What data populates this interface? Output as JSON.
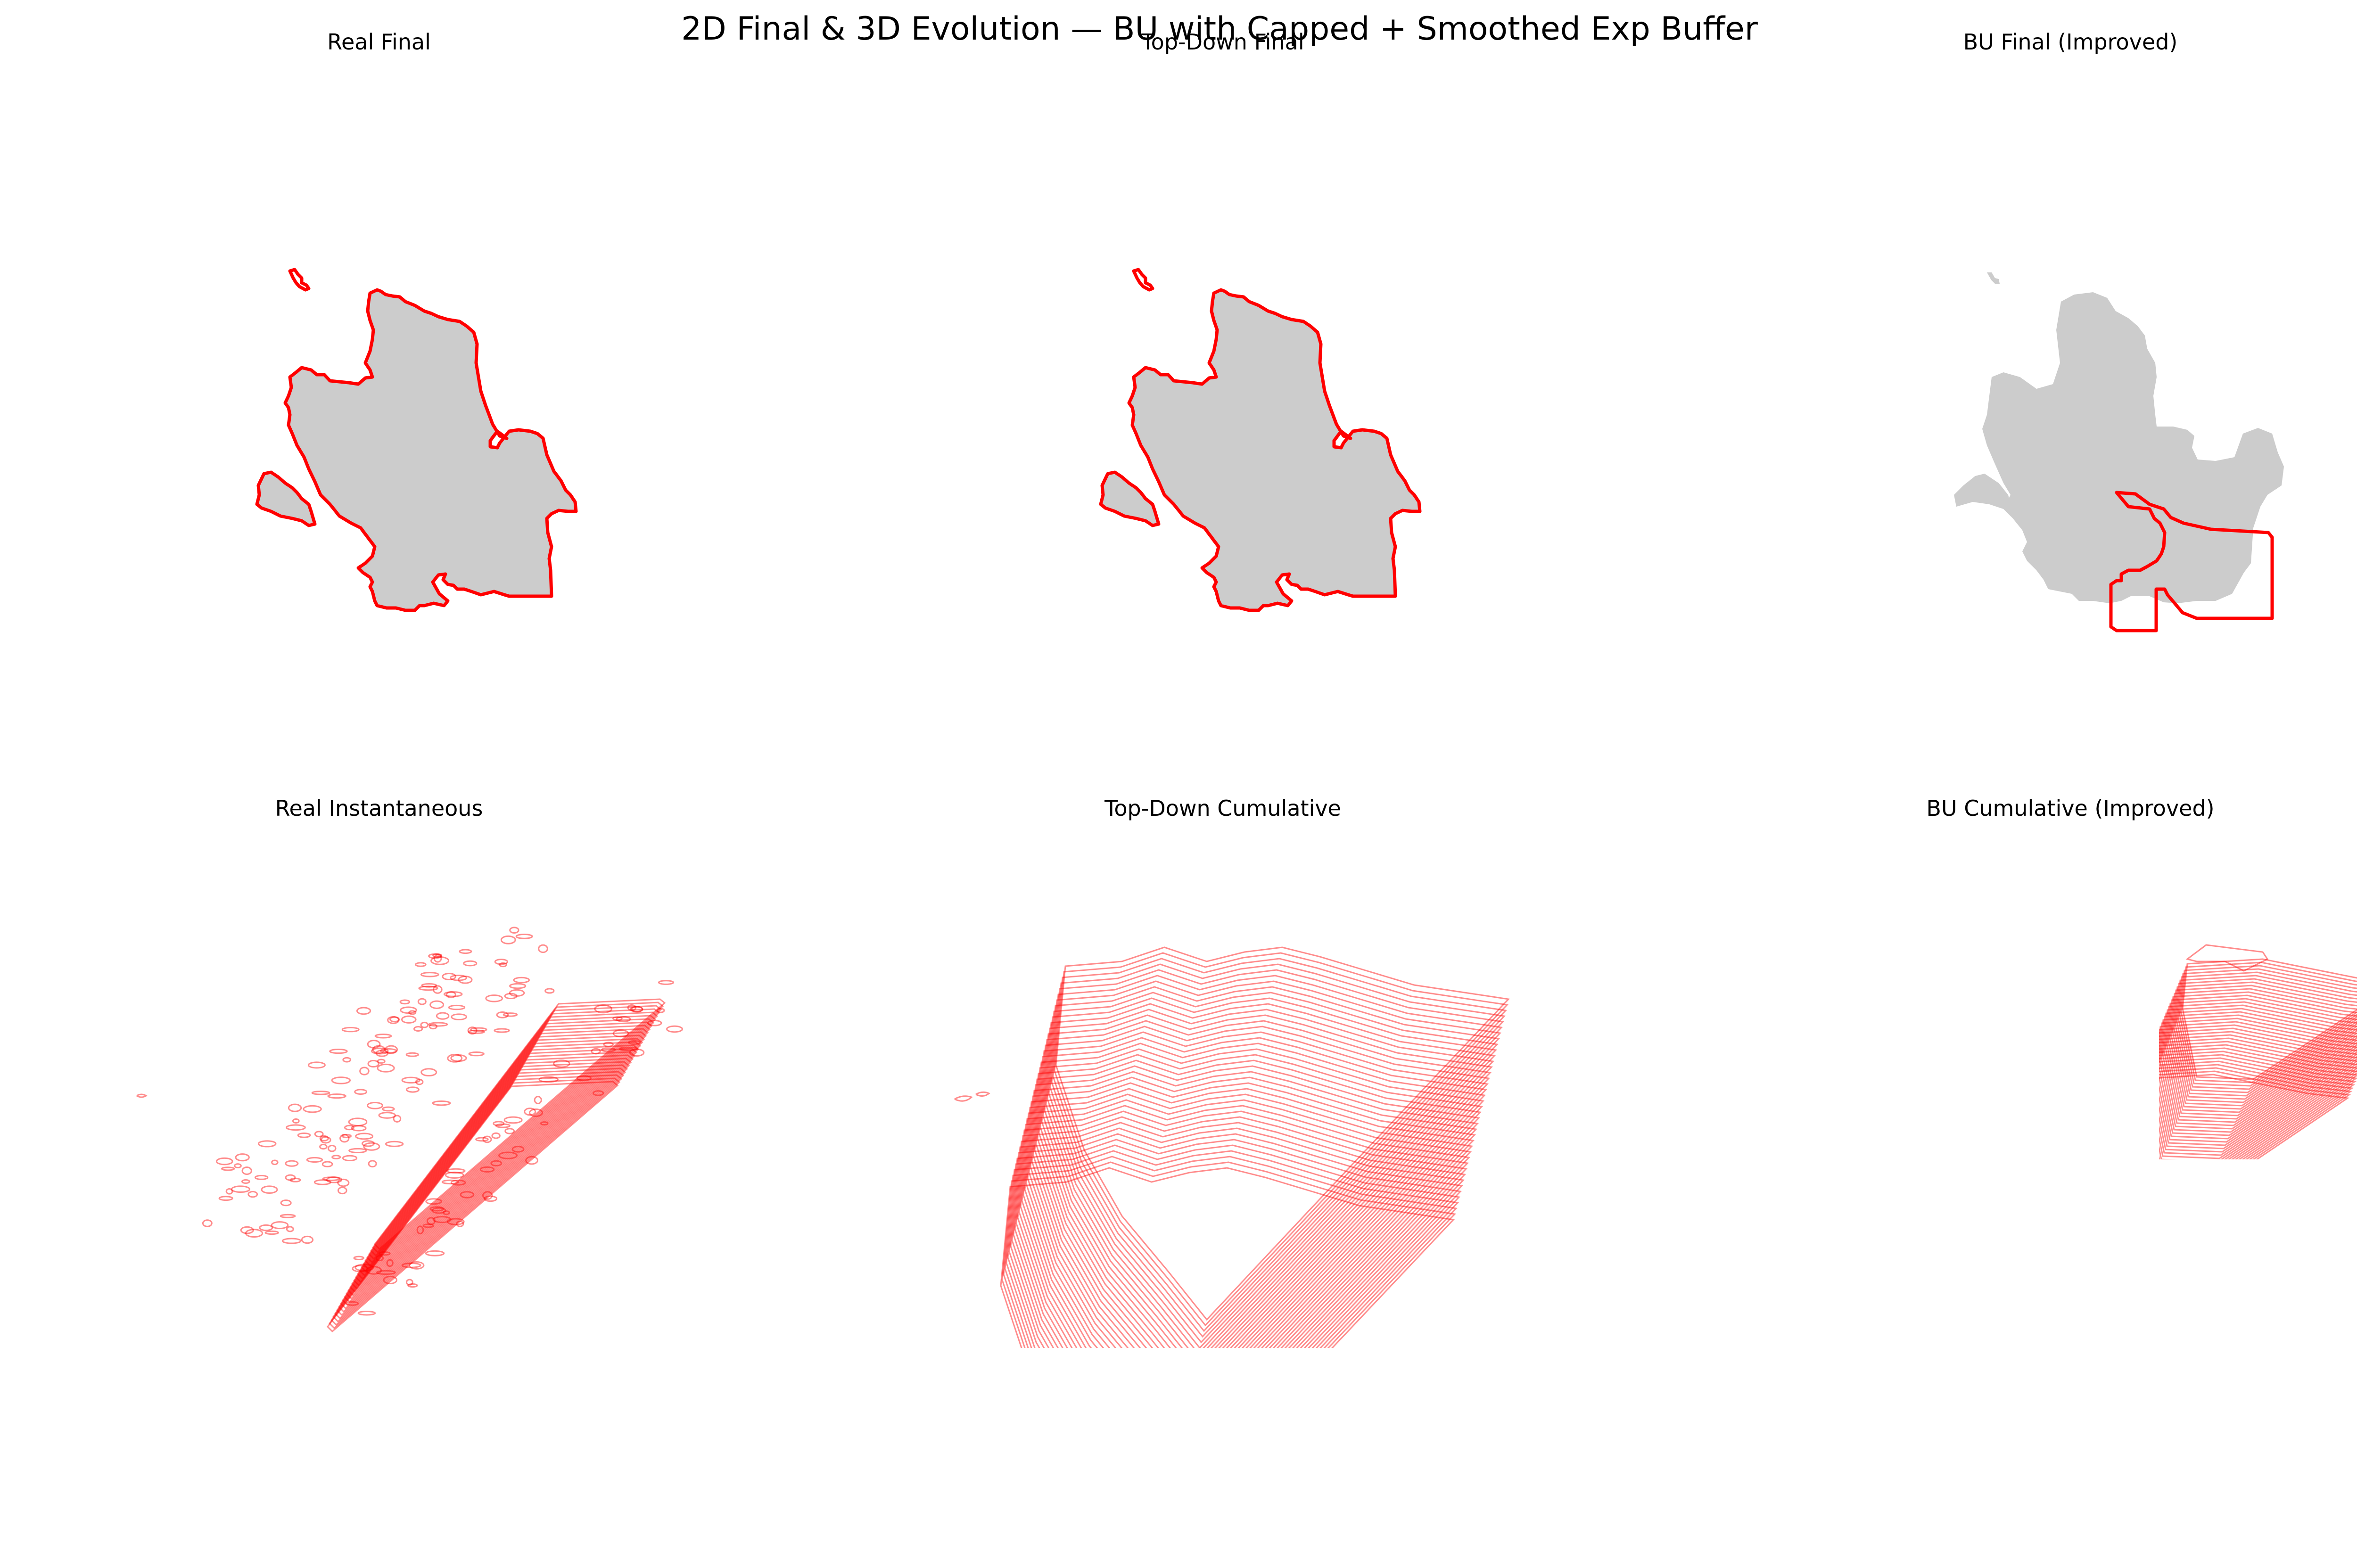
{
  "suptitle": "2D Final & 3D Evolution — BU with Capped + Smoothed Exp Buffer",
  "panels": {
    "real_final": "Real Final",
    "td_final": "Top-Down Final",
    "bu_final": "BU Final (Improved)",
    "real_inst": "Real Instantaneous",
    "td_cum": "Top-Down Cumulative",
    "bu_cum": "BU Cumulative (Improved)"
  },
  "colors": {
    "fill": "#cccccc",
    "outline": "#ff0000",
    "contour": "#ff0000"
  },
  "chart_data": [
    {
      "type": "map",
      "title": "Real Final",
      "series": [
        {
          "name": "",
          "kind": "perimeter polygon over burned-area fill"
        }
      ],
      "axis": "off"
    },
    {
      "type": "map",
      "title": "Top-Down Final",
      "series": [
        {
          "name": "",
          "kind": "perimeter polygon over burned-area fill"
        }
      ],
      "axis": "off"
    },
    {
      "type": "map",
      "title": "BU Final (Improved)",
      "series": [
        {
          "name": "",
          "kind": "perimeter polygon over burned-area fill"
        }
      ],
      "axis": "off"
    },
    {
      "type": "3d-contour-stack",
      "title": "Real Instantaneous",
      "axis": "off"
    },
    {
      "type": "3d-contour-stack",
      "title": "Top-Down Cumulative",
      "axis": "off"
    },
    {
      "type": "3d-contour-stack",
      "title": "BU Cumulative (Improved)",
      "axis": "off"
    }
  ]
}
